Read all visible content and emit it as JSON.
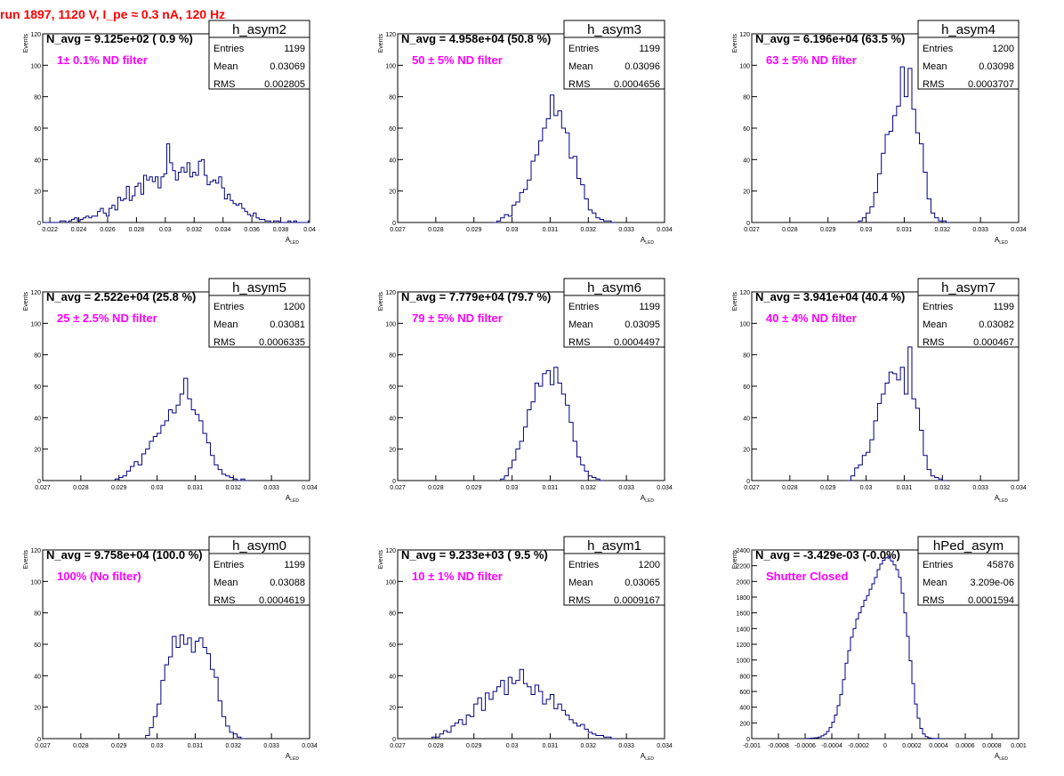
{
  "run_title": "run 1897,  1120 V, I_pe ≈ 0.3 nA, 120 Hz",
  "colors": {
    "histogram": "#000080",
    "annotation": "#ff00ff",
    "title": "#ff0000",
    "frame": "#000000"
  },
  "chart_data": [
    {
      "type": "histogram",
      "name": "h_asym2",
      "avg_label": "N_avg = 9.125e+02 ( 0.9 %)",
      "filter_label": "1± 0.1% ND filter",
      "stats": [
        {
          "label": "Entries",
          "value": "1199"
        },
        {
          "label": "Mean",
          "value": "0.03069"
        },
        {
          "label": "RMS",
          "value": "0.002805"
        }
      ],
      "xlabel": "A_LED",
      "ylabel": "Events",
      "xlim": [
        0.0215,
        0.04
      ],
      "ylim": [
        0,
        120
      ],
      "xticks": [
        "0.022",
        "0.024",
        "0.026",
        "0.028",
        "0.03",
        "0.032",
        "0.034",
        "0.036",
        "0.038",
        "0.04"
      ],
      "xtick_values": [
        0.022,
        0.024,
        0.026,
        0.028,
        0.03,
        0.032,
        0.034,
        0.036,
        0.038,
        0.04
      ],
      "yticks": [
        0,
        20,
        40,
        60,
        80,
        100,
        120
      ],
      "bin_start": 0.0215,
      "bin_width": 0.0002,
      "counts": [
        0,
        0,
        0,
        0,
        0,
        0,
        1,
        1,
        0,
        1,
        2,
        3,
        1,
        2,
        3,
        4,
        3,
        4,
        4,
        7,
        9,
        6,
        4,
        9,
        11,
        8,
        16,
        14,
        15,
        23,
        14,
        17,
        23,
        25,
        18,
        30,
        27,
        29,
        26,
        29,
        22,
        29,
        31,
        50,
        38,
        33,
        27,
        32,
        35,
        32,
        38,
        29,
        32,
        30,
        39,
        40,
        30,
        24,
        26,
        27,
        25,
        29,
        22,
        15,
        18,
        14,
        12,
        11,
        12,
        9,
        7,
        5,
        4,
        6,
        3,
        2,
        2,
        1,
        1,
        0,
        1,
        1,
        0,
        0,
        0,
        1,
        0,
        1,
        0,
        0,
        0,
        0,
        1
      ]
    },
    {
      "type": "histogram",
      "name": "h_asym3",
      "avg_label": "N_avg = 4.958e+04 (50.8 %)",
      "filter_label": "50 ± 5% ND filter",
      "stats": [
        {
          "label": "Entries",
          "value": "1199"
        },
        {
          "label": "Mean",
          "value": "0.03096"
        },
        {
          "label": "RMS",
          "value": "0.0004656"
        }
      ],
      "xlabel": "A_LED",
      "ylabel": "Events",
      "xlim": [
        0.027,
        0.034
      ],
      "ylim": [
        0,
        120
      ],
      "xticks": [
        "0.027",
        "0.028",
        "0.029",
        "0.03",
        "0.031",
        "0.032",
        "0.033",
        "0.034"
      ],
      "xtick_values": [
        0.027,
        0.028,
        0.029,
        0.03,
        0.031,
        0.032,
        0.033,
        0.034
      ],
      "yticks": [
        0,
        20,
        40,
        60,
        80,
        100,
        120
      ],
      "bin_start": 0.0295,
      "bin_width": 0.0001,
      "counts": [
        0,
        1,
        3,
        5,
        4,
        11,
        13,
        19,
        21,
        27,
        39,
        43,
        52,
        60,
        66,
        81,
        68,
        71,
        60,
        57,
        41,
        42,
        28,
        24,
        15,
        8,
        6,
        3,
        2,
        1,
        1,
        0
      ]
    },
    {
      "type": "histogram",
      "name": "h_asym4",
      "avg_label": "N_avg = 6.196e+04 (63.5 %)",
      "filter_label": "63 ± 5% ND filter",
      "stats": [
        {
          "label": "Entries",
          "value": "1200"
        },
        {
          "label": "Mean",
          "value": "0.03098"
        },
        {
          "label": "RMS",
          "value": "0.0003707"
        }
      ],
      "xlabel": "A_LED",
      "ylabel": "Events",
      "xlim": [
        0.027,
        0.034
      ],
      "ylim": [
        0,
        120
      ],
      "xticks": [
        "0.027",
        "0.028",
        "0.029",
        "0.03",
        "0.031",
        "0.032",
        "0.033",
        "0.034"
      ],
      "xtick_values": [
        0.027,
        0.028,
        0.029,
        0.03,
        0.031,
        0.032,
        0.033,
        0.034
      ],
      "yticks": [
        0,
        20,
        40,
        60,
        80,
        100,
        120
      ],
      "bin_start": 0.0298,
      "bin_width": 0.0001,
      "counts": [
        1,
        3,
        6,
        10,
        19,
        31,
        44,
        56,
        58,
        68,
        74,
        99,
        80,
        98,
        72,
        57,
        50,
        32,
        15,
        6,
        3,
        1,
        1,
        0
      ]
    },
    {
      "type": "histogram",
      "name": "h_asym5",
      "avg_label": "N_avg = 2.522e+04 (25.8 %)",
      "filter_label": "25 ± 2.5% ND filter",
      "stats": [
        {
          "label": "Entries",
          "value": "1200"
        },
        {
          "label": "Mean",
          "value": "0.03081"
        },
        {
          "label": "RMS",
          "value": "0.0006335"
        }
      ],
      "xlabel": "A_LED",
      "ylabel": "Events",
      "xlim": [
        0.027,
        0.034
      ],
      "ylim": [
        0,
        120
      ],
      "xticks": [
        "0.027",
        "0.028",
        "0.029",
        "0.03",
        "0.031",
        "0.032",
        "0.033",
        "0.034"
      ],
      "xtick_values": [
        0.027,
        0.028,
        0.029,
        0.03,
        0.031,
        0.032,
        0.033,
        0.034
      ],
      "yticks": [
        0,
        20,
        40,
        60,
        80,
        100,
        120
      ],
      "bin_start": 0.0289,
      "bin_width": 0.0001,
      "counts": [
        1,
        2,
        3,
        6,
        9,
        12,
        10,
        17,
        20,
        25,
        28,
        30,
        35,
        38,
        45,
        43,
        48,
        55,
        65,
        52,
        45,
        42,
        38,
        30,
        24,
        16,
        10,
        7,
        4,
        3,
        2,
        1,
        0,
        1,
        0
      ]
    },
    {
      "type": "histogram",
      "name": "h_asym6",
      "avg_label": "N_avg = 7.779e+04 (79.7 %)",
      "filter_label": "79 ± 5% ND filter",
      "stats": [
        {
          "label": "Entries",
          "value": "1199"
        },
        {
          "label": "Mean",
          "value": "0.03095"
        },
        {
          "label": "RMS",
          "value": "0.0004497"
        }
      ],
      "xlabel": "A_LED",
      "ylabel": "Events",
      "xlim": [
        0.027,
        0.034
      ],
      "ylim": [
        0,
        120
      ],
      "xticks": [
        "0.027",
        "0.028",
        "0.029",
        "0.03",
        "0.031",
        "0.032",
        "0.033",
        "0.034"
      ],
      "xtick_values": [
        0.027,
        0.028,
        0.029,
        0.03,
        0.031,
        0.032,
        0.033,
        0.034
      ],
      "yticks": [
        0,
        20,
        40,
        60,
        80,
        100,
        120
      ],
      "bin_start": 0.0297,
      "bin_width": 0.0001,
      "counts": [
        1,
        3,
        8,
        13,
        20,
        25,
        34,
        45,
        50,
        62,
        60,
        68,
        70,
        61,
        72,
        62,
        55,
        48,
        37,
        25,
        15,
        10,
        6,
        3,
        2,
        1,
        0
      ]
    },
    {
      "type": "histogram",
      "name": "h_asym7",
      "avg_label": "N_avg = 3.941e+04 (40.4 %)",
      "filter_label": "40 ± 4% ND filter",
      "stats": [
        {
          "label": "Entries",
          "value": "1199"
        },
        {
          "label": "Mean",
          "value": "0.03082"
        },
        {
          "label": "RMS",
          "value": "0.000467"
        }
      ],
      "xlabel": "A_LED",
      "ylabel": "Events",
      "xlim": [
        0.027,
        0.034
      ],
      "ylim": [
        0,
        120
      ],
      "xticks": [
        "0.027",
        "0.028",
        "0.029",
        "0.03",
        "0.031",
        "0.032",
        "0.033",
        "0.034"
      ],
      "xtick_values": [
        0.027,
        0.028,
        0.029,
        0.03,
        0.031,
        0.032,
        0.033,
        0.034
      ],
      "yticks": [
        0,
        20,
        40,
        60,
        80,
        100,
        120
      ],
      "bin_start": 0.0295,
      "bin_width": 0.0001,
      "counts": [
        0,
        3,
        8,
        10,
        16,
        18,
        26,
        38,
        49,
        55,
        62,
        69,
        68,
        64,
        72,
        55,
        85,
        52,
        46,
        32,
        16,
        7,
        3,
        2,
        1,
        0
      ]
    },
    {
      "type": "histogram",
      "name": "h_asym0",
      "avg_label": "N_avg = 9.758e+04 (100.0 %)",
      "filter_label": "100% (No filter)",
      "stats": [
        {
          "label": "Entries",
          "value": "1199"
        },
        {
          "label": "Mean",
          "value": "0.03088"
        },
        {
          "label": "RMS",
          "value": "0.0004619"
        }
      ],
      "xlabel": "A_LED",
      "ylabel": "Events",
      "xlim": [
        0.027,
        0.034
      ],
      "ylim": [
        0,
        120
      ],
      "xticks": [
        "0.027",
        "0.028",
        "0.029",
        "0.03",
        "0.031",
        "0.032",
        "0.033",
        "0.034"
      ],
      "xtick_values": [
        0.027,
        0.028,
        0.029,
        0.03,
        0.031,
        0.032,
        0.033,
        0.034
      ],
      "yticks": [
        0,
        20,
        40,
        60,
        80,
        100,
        120
      ],
      "bin_start": 0.0297,
      "bin_width": 0.0001,
      "counts": [
        2,
        7,
        14,
        22,
        37,
        47,
        52,
        65,
        58,
        66,
        60,
        64,
        55,
        62,
        64,
        58,
        54,
        44,
        39,
        24,
        14,
        8,
        4,
        3,
        1,
        0
      ]
    },
    {
      "type": "histogram",
      "name": "h_asym1",
      "avg_label": "N_avg = 9.233e+03 ( 9.5 %)",
      "filter_label": "10 ± 1% ND filter",
      "stats": [
        {
          "label": "Entries",
          "value": "1200"
        },
        {
          "label": "Mean",
          "value": "0.03065"
        },
        {
          "label": "RMS",
          "value": "0.0009167"
        }
      ],
      "xlabel": "A_LED",
      "ylabel": "Events",
      "xlim": [
        0.027,
        0.034
      ],
      "ylim": [
        0,
        120
      ],
      "xticks": [
        "0.027",
        "0.028",
        "0.029",
        "0.03",
        "0.031",
        "0.032",
        "0.033",
        "0.034"
      ],
      "xtick_values": [
        0.027,
        0.028,
        0.029,
        0.03,
        0.031,
        0.032,
        0.033,
        0.034
      ],
      "yticks": [
        0,
        20,
        40,
        60,
        80,
        100,
        120
      ],
      "bin_start": 0.0279,
      "bin_width": 0.0001,
      "counts": [
        1,
        1,
        3,
        5,
        4,
        8,
        10,
        12,
        9,
        15,
        14,
        22,
        26,
        18,
        29,
        25,
        30,
        33,
        37,
        28,
        39,
        35,
        37,
        44,
        35,
        33,
        28,
        34,
        30,
        22,
        25,
        28,
        19,
        22,
        18,
        15,
        12,
        10,
        8,
        9,
        6,
        4,
        3,
        2,
        2,
        1,
        1,
        0
      ]
    },
    {
      "type": "histogram",
      "name": "hPed_asym",
      "avg_label": "N_avg = -3.429e-03 (-0.0%)",
      "filter_label": "Shutter Closed",
      "stats": [
        {
          "label": "Entries",
          "value": "45876"
        },
        {
          "label": "Mean",
          "value": "3.209e-06"
        },
        {
          "label": "RMS",
          "value": "0.0001594"
        }
      ],
      "xlabel": "A_LED",
      "ylabel": "Events",
      "xlim": [
        -0.001,
        0.001
      ],
      "ylim": [
        0,
        2400
      ],
      "xticks": [
        "-0.001",
        "-0.0008",
        "-0.0006",
        "-0.0004",
        "-0.0002",
        "0",
        "0.0002",
        "0.0004",
        "0.0006",
        "0.0008",
        "0.001"
      ],
      "xtick_values": [
        -0.001,
        -0.0008,
        -0.0006,
        -0.0004,
        -0.0002,
        0,
        0.0002,
        0.0004,
        0.0006,
        0.0008,
        0.001
      ],
      "yticks": [
        0,
        200,
        400,
        600,
        800,
        1000,
        1200,
        1400,
        1600,
        1800,
        2000,
        2200,
        2400
      ],
      "bin_start": -0.0006,
      "bin_width": 2e-05,
      "counts": [
        2,
        3,
        5,
        8,
        12,
        20,
        35,
        55,
        90,
        140,
        210,
        300,
        420,
        560,
        750,
        960,
        1120,
        1290,
        1400,
        1520,
        1600,
        1680,
        1760,
        1820,
        1900,
        1970,
        2050,
        2150,
        2220,
        2270,
        2300,
        2320,
        2260,
        2210,
        2150,
        2050,
        1850,
        1600,
        1300,
        990,
        700,
        440,
        260,
        130,
        60,
        25,
        10,
        4,
        2,
        1,
        0
      ]
    }
  ]
}
